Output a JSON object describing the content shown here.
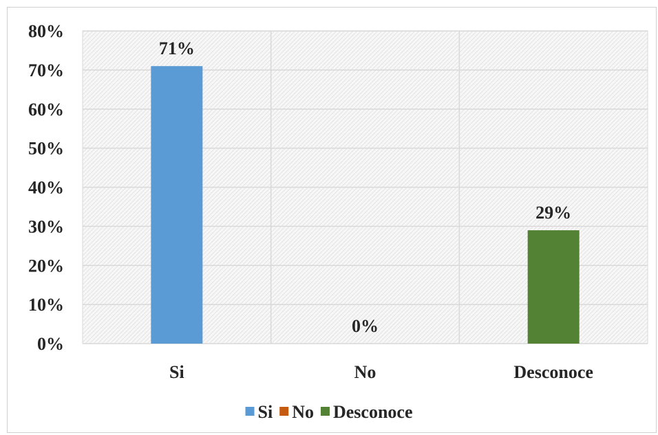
{
  "chart_data": {
    "type": "bar",
    "categories": [
      "Si",
      "No",
      "Desconoce"
    ],
    "values": [
      71,
      0,
      29
    ],
    "data_labels": [
      "71%",
      "0%",
      "29%"
    ],
    "colors": [
      "#5b9bd5",
      "#c55a11",
      "#548235"
    ],
    "ylim": [
      0,
      80
    ],
    "yticks": [
      0,
      10,
      20,
      30,
      40,
      50,
      60,
      70,
      80
    ],
    "ytick_labels": [
      "0%",
      "10%",
      "20%",
      "30%",
      "40%",
      "50%",
      "60%",
      "70%",
      "80%"
    ],
    "grid": true,
    "legend": {
      "position": "bottom",
      "entries": [
        "Si",
        "No",
        "Desconoce"
      ]
    },
    "title": "",
    "xlabel": "",
    "ylabel": ""
  }
}
